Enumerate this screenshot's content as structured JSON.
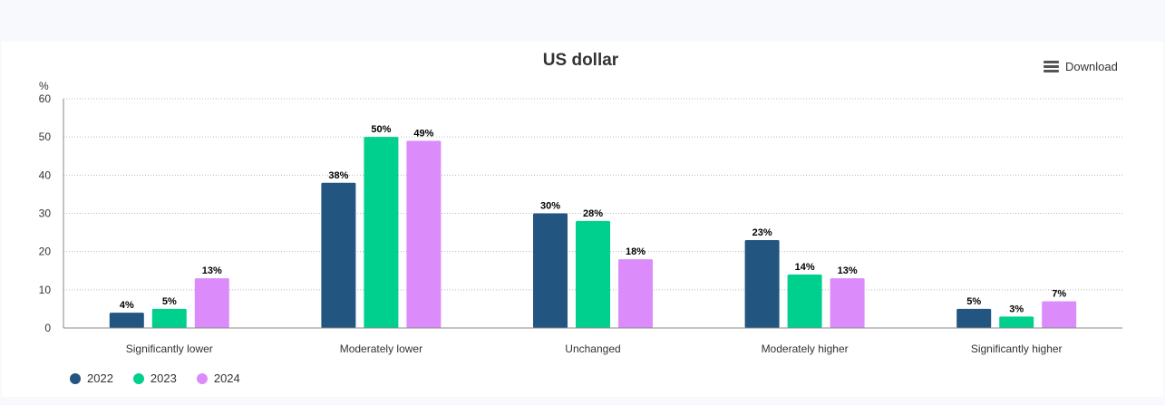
{
  "chart_data": {
    "type": "bar",
    "title": "US dollar",
    "ylabel": "%",
    "xlabel": "",
    "ylim": [
      0,
      60
    ],
    "yticks": [
      0,
      10,
      20,
      30,
      40,
      50,
      60
    ],
    "grid": true,
    "legend_position": "bottom-left",
    "categories": [
      "Significantly lower",
      "Moderately lower",
      "Unchanged",
      "Moderately higher",
      "Significantly higher"
    ],
    "series": [
      {
        "name": "2022",
        "color": "#22557f",
        "values": [
          4,
          38,
          30,
          23,
          5
        ]
      },
      {
        "name": "2023",
        "color": "#00d08e",
        "values": [
          5,
          50,
          28,
          14,
          3
        ]
      },
      {
        "name": "2024",
        "color": "#dc8cfa",
        "values": [
          13,
          49,
          18,
          13,
          7
        ]
      }
    ],
    "data_label_suffix": "%"
  },
  "toolbar": {
    "download_label": "Download",
    "menu_icon": "hamburger-menu-icon"
  }
}
